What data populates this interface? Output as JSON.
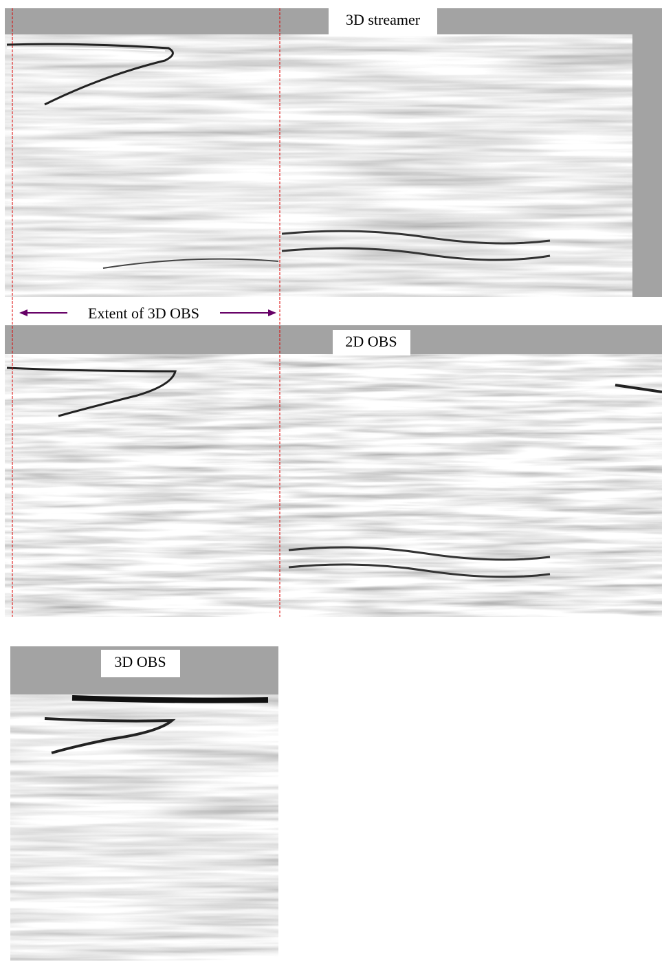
{
  "panels": [
    {
      "label": "3D streamer"
    },
    {
      "label": "2D OBS"
    },
    {
      "label": "3D OBS"
    }
  ],
  "annotation": {
    "label": "Extent of 3D OBS"
  }
}
